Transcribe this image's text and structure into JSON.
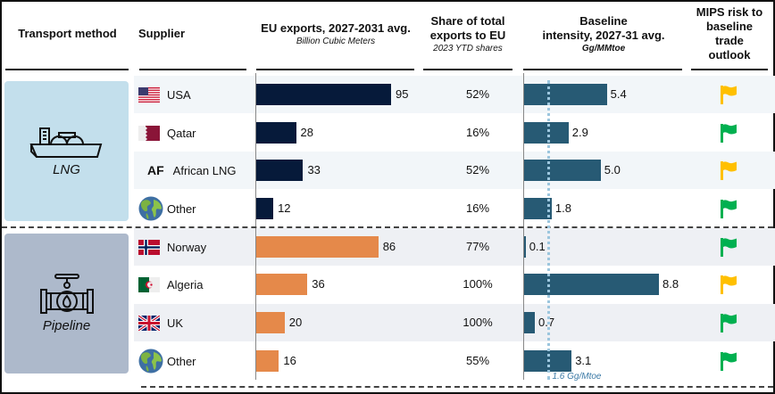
{
  "headers": {
    "transport": "Transport method",
    "supplier": "Supplier",
    "exports_title": "EU exports, 2027-2031 avg.",
    "exports_sub": "Billion Cubic Meters",
    "share_title_1": "Share of total",
    "share_title_2": "exports to EU",
    "share_sub": "2023 YTD shares",
    "intensity_title_1": "Baseline",
    "intensity_title_2": "intensity, 2027-31 avg.",
    "intensity_sub": "Gg/MMtoe",
    "risk_1": "MIPS risk to",
    "risk_2": "baseline",
    "risk_3": "trade",
    "risk_4": "outlook"
  },
  "groups": [
    {
      "label": "LNG",
      "icon": "lng-ship-icon",
      "color": "#c3dfec",
      "bar_color": "#061a3a"
    },
    {
      "label": "Pipeline",
      "icon": "pipeline-valve-icon",
      "color": "#adb9cb",
      "bar_color": "#e5894a"
    }
  ],
  "colors": {
    "intensity_bar": "#275a74",
    "flag_yellow": "#ffc000",
    "flag_green": "#00b050",
    "reference_line": "#9cc6de"
  },
  "chart_data": {
    "type": "table",
    "title": "EU gas supply by transport method and supplier",
    "columns": [
      "Transport method",
      "Supplier",
      "EU exports, 2027-2031 avg. (Billion Cubic Meters)",
      "Share of total exports to EU (2023 YTD shares)",
      "Baseline intensity, 2027-31 avg. (Gg/MMtoe)",
      "MIPS risk to baseline trade outlook"
    ],
    "reference_line": {
      "value": 1.6,
      "label": "1.6 Gg/Mtoe"
    },
    "exports_range": [
      0,
      105
    ],
    "intensity_range": [
      0,
      10
    ],
    "rows": [
      {
        "group": "LNG",
        "supplier": "USA",
        "flag": "usa-flag-icon",
        "exports": 95,
        "exports_label": "95",
        "share": "52%",
        "intensity": 5.4,
        "intensity_label": "5.4",
        "risk": "yellow"
      },
      {
        "group": "LNG",
        "supplier": "Qatar",
        "flag": "qatar-flag-icon",
        "exports": 28,
        "exports_label": "28",
        "share": "16%",
        "intensity": 2.9,
        "intensity_label": "2.9",
        "risk": "green"
      },
      {
        "group": "LNG",
        "supplier": "African LNG",
        "flag": "AF",
        "exports": 33,
        "exports_label": "33",
        "share": "52%",
        "intensity": 5.0,
        "intensity_label": "5.0",
        "risk": "yellow"
      },
      {
        "group": "LNG",
        "supplier": "Other",
        "flag": "globe-icon",
        "exports": 12,
        "exports_label": "12",
        "share": "16%",
        "intensity": 1.8,
        "intensity_label": "1.8",
        "risk": "green"
      },
      {
        "group": "Pipeline",
        "supplier": "Norway",
        "flag": "norway-flag-icon",
        "exports": 86,
        "exports_label": "86",
        "share": "77%",
        "intensity": 0.1,
        "intensity_label": "0.1",
        "risk": "green"
      },
      {
        "group": "Pipeline",
        "supplier": "Algeria",
        "flag": "algeria-flag-icon",
        "exports": 36,
        "exports_label": "36",
        "share": "100%",
        "intensity": 8.8,
        "intensity_label": "8.8",
        "risk": "yellow"
      },
      {
        "group": "Pipeline",
        "supplier": "UK",
        "flag": "uk-flag-icon",
        "exports": 20,
        "exports_label": "20",
        "share": "100%",
        "intensity": 0.7,
        "intensity_label": "0.7",
        "risk": "green"
      },
      {
        "group": "Pipeline",
        "supplier": "Other",
        "flag": "globe-icon",
        "exports": 16,
        "exports_label": "16",
        "share": "55%",
        "intensity": 3.1,
        "intensity_label": "3.1",
        "risk": "green"
      }
    ]
  }
}
